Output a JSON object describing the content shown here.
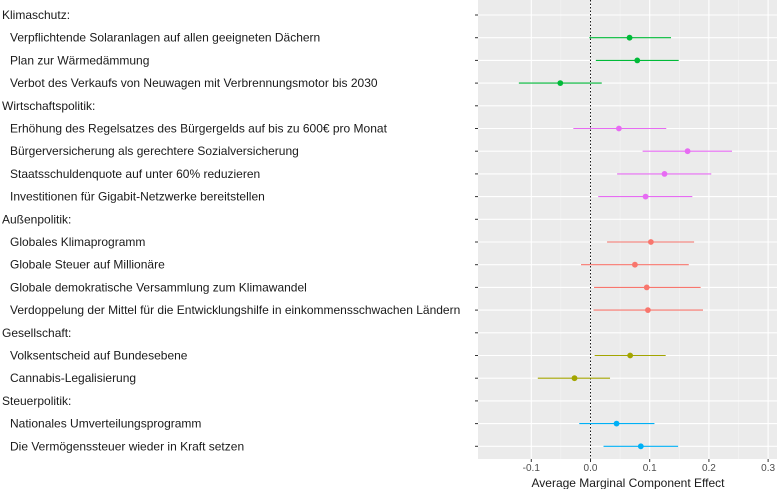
{
  "chart_data": {
    "type": "scatter",
    "subtype": "coefficient-plot-with-error-bars",
    "xlabel": "Average Marginal Component Effect",
    "xlim": [
      -0.19,
      0.315
    ],
    "x_ticks": [
      -0.1,
      0.0,
      0.1,
      0.2,
      0.3
    ],
    "x_tick_labels": [
      "-0.1",
      "0.0",
      "0.1",
      "0.2",
      "0.3"
    ],
    "reference_line": {
      "x": 0,
      "style": "dotted"
    },
    "grid": true,
    "groups": [
      {
        "name": "Klimaschutz:",
        "color": "#00BA38",
        "items": [
          {
            "label": "Verpflichtende Solaranlagen auf allen geeigneten Dächern",
            "estimate": 0.066,
            "ci_low": -0.002,
            "ci_high": 0.136
          },
          {
            "label": "Plan zur Wärmedämmung",
            "estimate": 0.079,
            "ci_low": 0.009,
            "ci_high": 0.149
          },
          {
            "label": "Verbot des Verkaufs von Neuwagen mit Verbrennungsmotor bis 2030",
            "estimate": -0.051,
            "ci_low": -0.121,
            "ci_high": 0.019
          }
        ]
      },
      {
        "name": "Wirtschaftspolitik:",
        "color": "#E76BF3",
        "items": [
          {
            "label": "Erhöhung des Regelsatzes des Bürgergelds auf bis zu 600€ pro Monat",
            "estimate": 0.048,
            "ci_low": -0.029,
            "ci_high": 0.128
          },
          {
            "label": "Bürgerversicherung als gerechtere Sozialversicherung",
            "estimate": 0.164,
            "ci_low": 0.088,
            "ci_high": 0.239
          },
          {
            "label": "Staatsschuldenquote auf unter 60% reduzieren",
            "estimate": 0.125,
            "ci_low": 0.045,
            "ci_high": 0.204
          },
          {
            "label": "Investitionen für Gigabit-Netzwerke bereitstellen",
            "estimate": 0.093,
            "ci_low": 0.013,
            "ci_high": 0.172
          }
        ]
      },
      {
        "name": "Außenpolitik:",
        "color": "#F8766D",
        "items": [
          {
            "label": "Globales Klimaprogramm",
            "estimate": 0.102,
            "ci_low": 0.028,
            "ci_high": 0.175
          },
          {
            "label": "Globale Steuer auf Millionäre",
            "estimate": 0.075,
            "ci_low": -0.016,
            "ci_high": 0.166
          },
          {
            "label": "Globale demokratische Versammlung zum Klimawandel",
            "estimate": 0.095,
            "ci_low": 0.006,
            "ci_high": 0.186
          },
          {
            "label": "Verdoppelung der Mittel für die Entwicklungshilfe in einkommensschwachen Ländern",
            "estimate": 0.097,
            "ci_low": 0.005,
            "ci_high": 0.19
          }
        ]
      },
      {
        "name": "Gesellschaft:",
        "color": "#A3A500",
        "items": [
          {
            "label": "Volksentscheid auf Bundesebene",
            "estimate": 0.067,
            "ci_low": 0.007,
            "ci_high": 0.127
          },
          {
            "label": "Cannabis-Legalisierung",
            "estimate": -0.027,
            "ci_low": -0.089,
            "ci_high": 0.033
          }
        ]
      },
      {
        "name": "Steuerpolitik:",
        "color": "#00B0F6",
        "items": [
          {
            "label": "Nationales Umverteilungsprogramm",
            "estimate": 0.044,
            "ci_low": -0.019,
            "ci_high": 0.108
          },
          {
            "label": "Die Vermögenssteuer wieder in Kraft setzen",
            "estimate": 0.085,
            "ci_low": 0.022,
            "ci_high": 0.148
          }
        ]
      }
    ]
  },
  "colors": {
    "panel_background": "#EBEBEB",
    "grid_major": "#FFFFFF",
    "grid_minor": "#F5F5F5",
    "axis_text": "#4D4D4D",
    "label_text": "#1A1A1A"
  }
}
